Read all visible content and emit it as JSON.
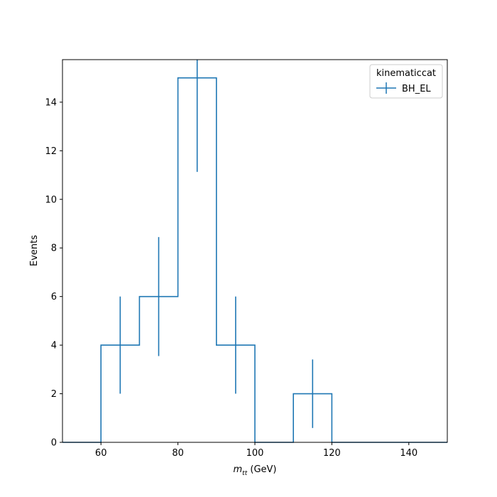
{
  "chart_data": {
    "type": "histogram",
    "title": "",
    "xlabel_math": "m",
    "xlabel_sub": "tt",
    "xlabel_unit": " (GeV)",
    "ylabel": "Events",
    "xlim": [
      50,
      150
    ],
    "ylim": [
      0,
      15.75
    ],
    "xticks": [
      60,
      80,
      100,
      120,
      140
    ],
    "yticks": [
      0,
      2,
      4,
      6,
      8,
      10,
      12,
      14
    ],
    "grid": false,
    "legend": {
      "title": "kinematiccat",
      "placement": "top-right",
      "entries": [
        "BH_EL"
      ]
    },
    "series": [
      {
        "name": "BH_EL",
        "color": "#1f77b4",
        "bin_edges": [
          50,
          60,
          70,
          80,
          90,
          100,
          110,
          120,
          130,
          140,
          150
        ],
        "counts": [
          0,
          4,
          6,
          15,
          4,
          0,
          2,
          0,
          0,
          0
        ],
        "errors": [
          0,
          2,
          2.45,
          3.87,
          2,
          0,
          1.41,
          0,
          0,
          0
        ]
      }
    ]
  }
}
